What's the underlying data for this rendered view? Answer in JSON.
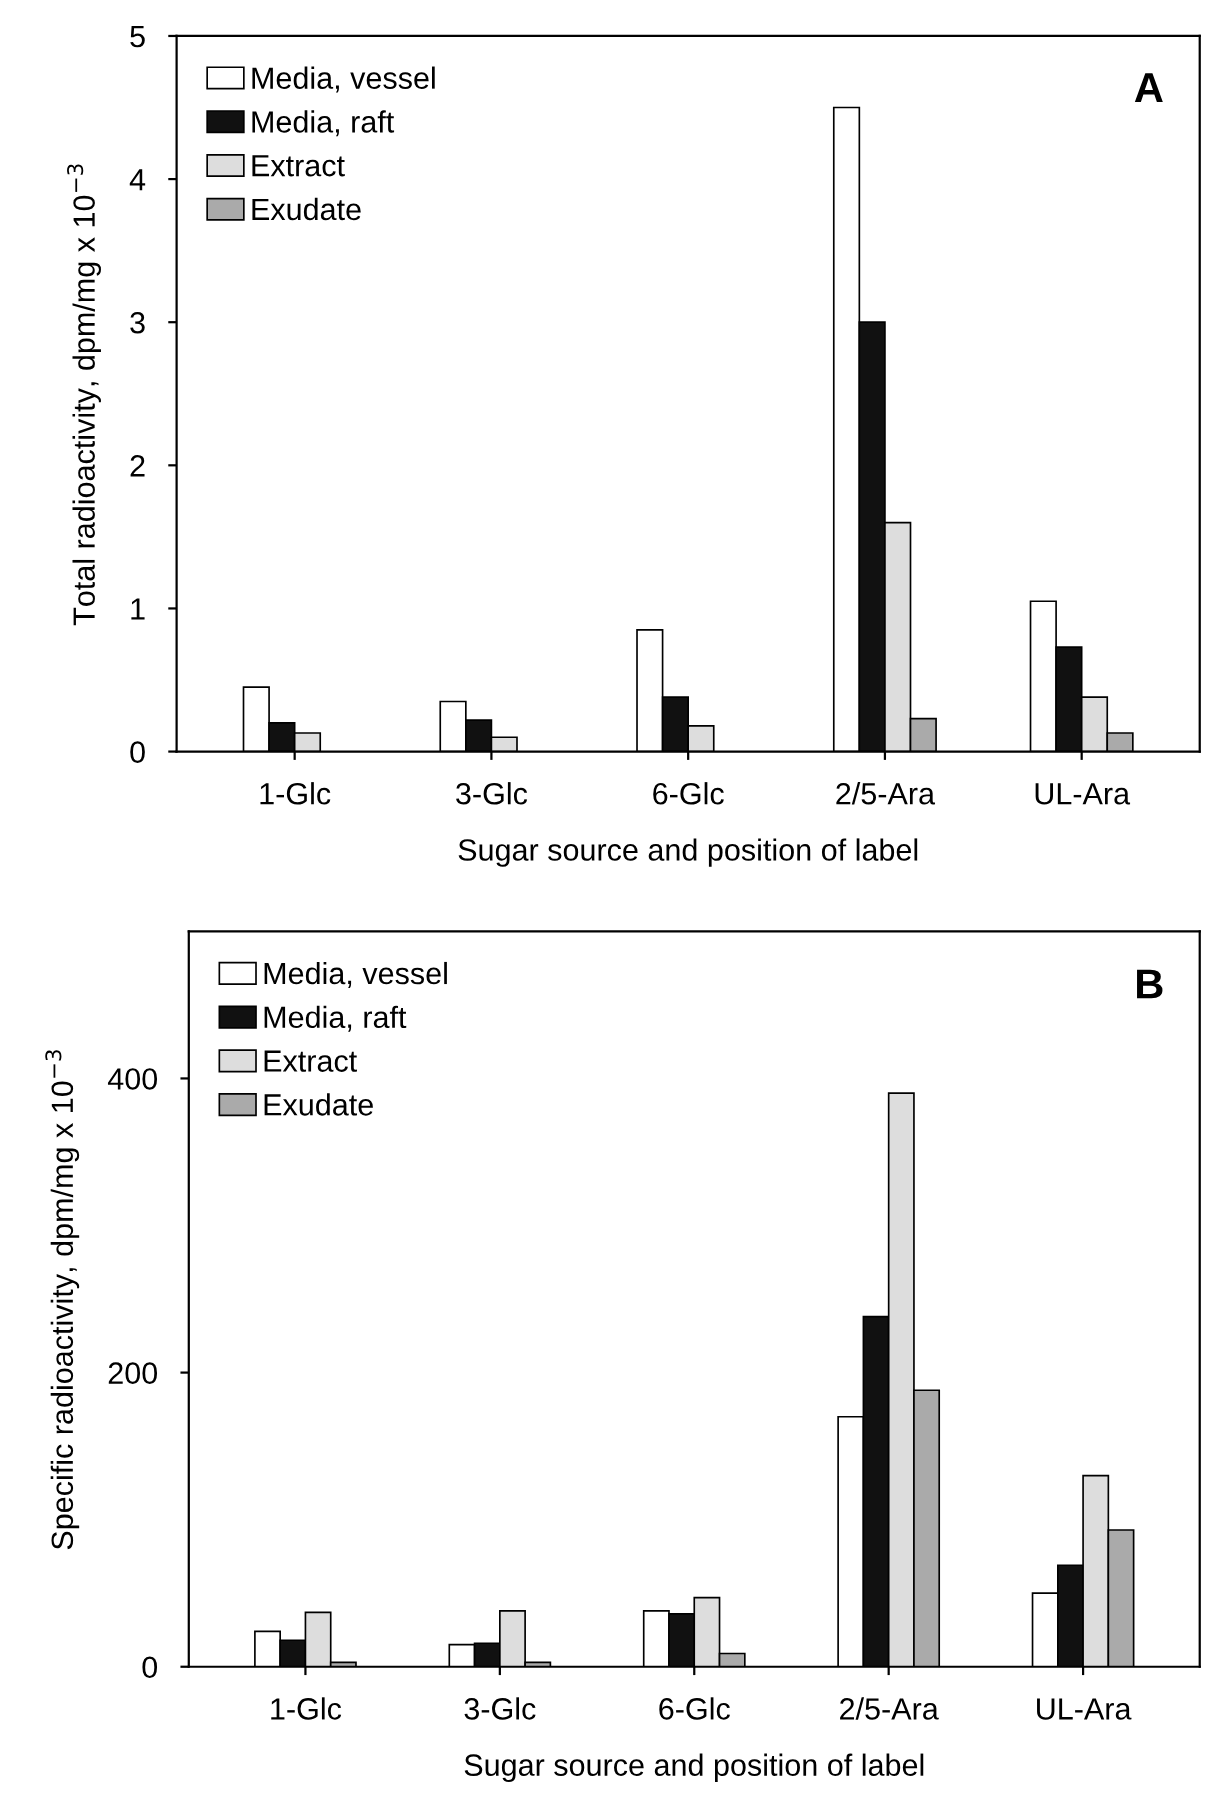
{
  "chart_data": [
    {
      "type": "bar",
      "xlabel": "Sugar source and position of label",
      "ylabel": "Total radioactivity, dpm/mg x 10$^{−3}$",
      "annotations": [
        "A"
      ],
      "categories": [
        "1-Glc",
        "3-Glc",
        "6-Glc",
        "2/5-Ara",
        "UL-Ara"
      ],
      "series": [
        {
          "name": "Media, vessel",
          "color": "#ffffff",
          "values": [
            0.45,
            0.35,
            0.85,
            4.5,
            1.05
          ]
        },
        {
          "name": "Media, raft",
          "color": "#111111",
          "values": [
            0.2,
            0.22,
            0.38,
            3.0,
            0.73
          ]
        },
        {
          "name": "Extract",
          "color": "#dddddd",
          "values": [
            0.13,
            0.1,
            0.18,
            1.6,
            0.38
          ]
        },
        {
          "name": "Exudate",
          "color": "#aaaaaa",
          "values": [
            null,
            null,
            null,
            0.23,
            0.13
          ]
        }
      ],
      "ylim": [
        0,
        5
      ],
      "yticks": [
        0,
        1,
        2,
        3,
        4,
        5
      ],
      "legend": "top left",
      "grid": false
    },
    {
      "type": "bar",
      "xlabel": "Sugar source and position of label",
      "ylabel": "Specific radioactivity, dpm/mg x 10$^{−3}$",
      "annotations": [
        "B"
      ],
      "categories": [
        "1-Glc",
        "3-Glc",
        "6-Glc",
        "2/5-Ara",
        "UL-Ara"
      ],
      "series": [
        {
          "name": "Media, vessel",
          "color": "#ffffff",
          "values": [
            24,
            15,
            38,
            170,
            50
          ]
        },
        {
          "name": "Media, raft",
          "color": "#111111",
          "values": [
            18,
            16,
            36,
            238,
            69
          ]
        },
        {
          "name": "Extract",
          "color": "#dddddd",
          "values": [
            37,
            38,
            47,
            390,
            130
          ]
        },
        {
          "name": "Exudate",
          "color": "#aaaaaa",
          "values": [
            3,
            3,
            9,
            188,
            93
          ]
        }
      ],
      "ylim": [
        0,
        500
      ],
      "yticks": [
        0,
        200,
        400
      ],
      "legend": "top left",
      "grid": false
    }
  ]
}
